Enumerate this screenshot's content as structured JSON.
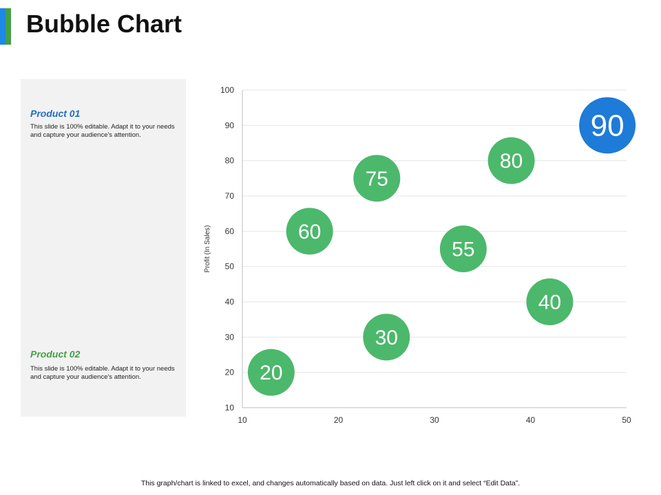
{
  "header": {
    "title": "Bubble Chart"
  },
  "panel": {
    "products": [
      {
        "title": "Product 01",
        "description": "This slide is 100% editable.  Adapt it to your needs and capture your audience's attention.",
        "color": "#1e6fc2"
      },
      {
        "title": "Product 02",
        "description": "This slide is 100% editable.  Adapt it to your needs and capture your audience's attention.",
        "color": "#43a047"
      }
    ]
  },
  "footer": {
    "note": "This graph/chart is linked to excel, and changes automatically based on data. Just left click on it and select “Edit Data”."
  },
  "chart_data": {
    "type": "scatter",
    "title": "",
    "xlabel": "",
    "ylabel": "Profit  (In Sales)",
    "xlim": [
      10,
      50
    ],
    "ylim": [
      10,
      100
    ],
    "xticks": [
      10,
      20,
      30,
      40,
      50
    ],
    "yticks": [
      10,
      20,
      30,
      40,
      50,
      60,
      70,
      80,
      90,
      100
    ],
    "grid": "horizontal",
    "colors": {
      "green": "#4cb86c",
      "blue": "#1e7bd8"
    },
    "points": [
      {
        "x": 13,
        "y": 20,
        "size": 20,
        "label": "20",
        "color": "#4cb86c"
      },
      {
        "x": 17,
        "y": 60,
        "size": 60,
        "label": "60",
        "color": "#4cb86c"
      },
      {
        "x": 24,
        "y": 75,
        "size": 75,
        "label": "75",
        "color": "#4cb86c"
      },
      {
        "x": 25,
        "y": 30,
        "size": 30,
        "label": "30",
        "color": "#4cb86c"
      },
      {
        "x": 33,
        "y": 55,
        "size": 55,
        "label": "55",
        "color": "#4cb86c"
      },
      {
        "x": 38,
        "y": 80,
        "size": 80,
        "label": "80",
        "color": "#4cb86c"
      },
      {
        "x": 42,
        "y": 40,
        "size": 40,
        "label": "40",
        "color": "#4cb86c"
      },
      {
        "x": 48,
        "y": 90,
        "size": 90,
        "label": "90",
        "color": "#1e7bd8"
      }
    ]
  }
}
